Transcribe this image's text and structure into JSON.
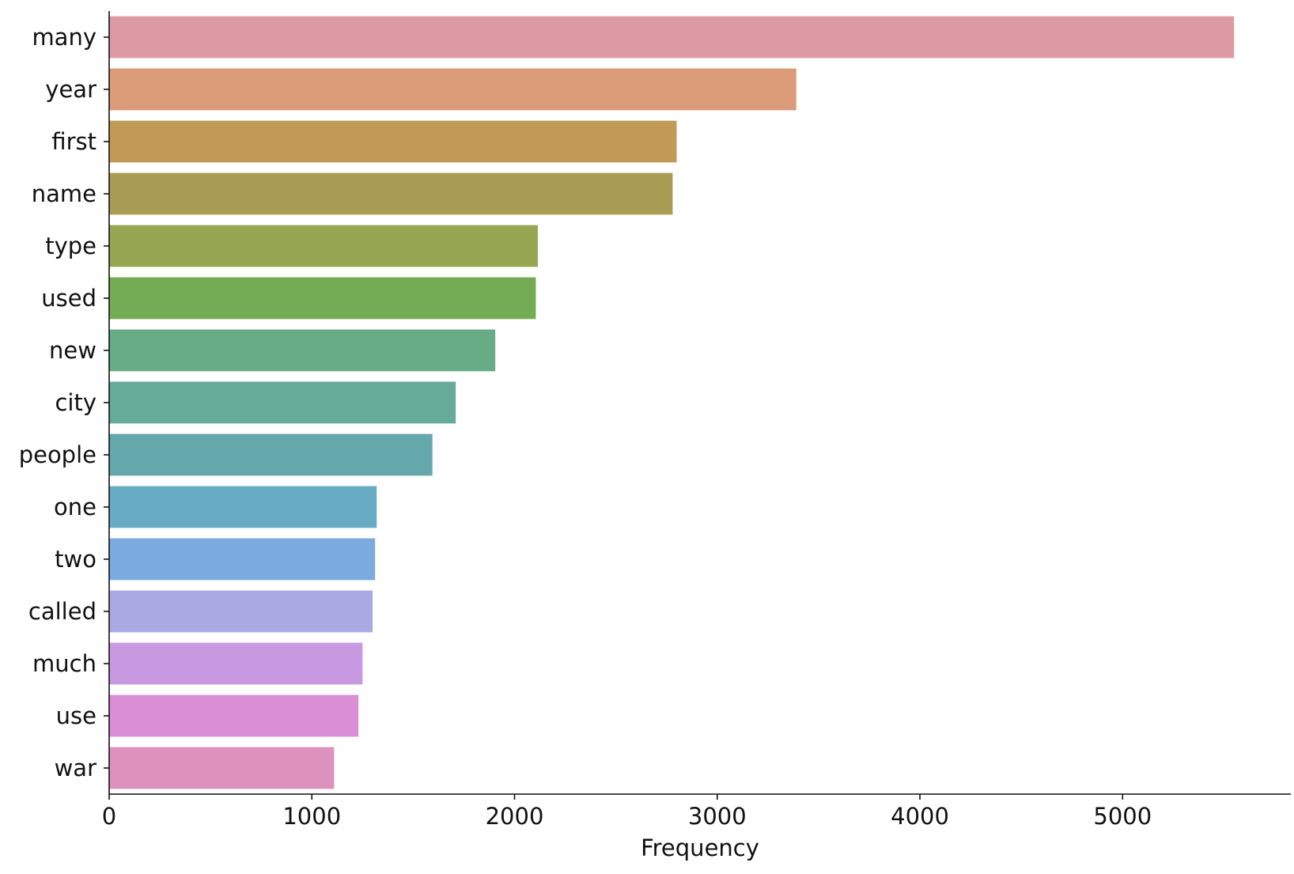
{
  "chart_data": {
    "type": "bar",
    "orientation": "horizontal",
    "categories": [
      "many",
      "year",
      "first",
      "name",
      "type",
      "used",
      "new",
      "city",
      "people",
      "one",
      "two",
      "called",
      "much",
      "use",
      "war"
    ],
    "values": [
      5550,
      3390,
      2800,
      2780,
      2115,
      2105,
      1905,
      1710,
      1595,
      1320,
      1312,
      1300,
      1250,
      1230,
      1110
    ],
    "colors": [
      "#de9aa4",
      "#d99b78",
      "#c19b56",
      "#a99d55",
      "#96a653",
      "#74ac55",
      "#67ac86",
      "#66aa9a",
      "#64a8ab",
      "#67abc4",
      "#7aaade",
      "#aaa9e3",
      "#c898e0",
      "#da8ed6",
      "#dc92bd"
    ],
    "xlabel": "Frequency",
    "ylabel": "",
    "xlim": [
      0,
      5830
    ],
    "xticks": [
      0,
      1000,
      2000,
      3000,
      4000,
      5000
    ],
    "xtick_labels": [
      "0",
      "1000",
      "2000",
      "3000",
      "4000",
      "5000"
    ],
    "grid": false,
    "legend": "none",
    "spines": [
      "left",
      "bottom"
    ]
  }
}
